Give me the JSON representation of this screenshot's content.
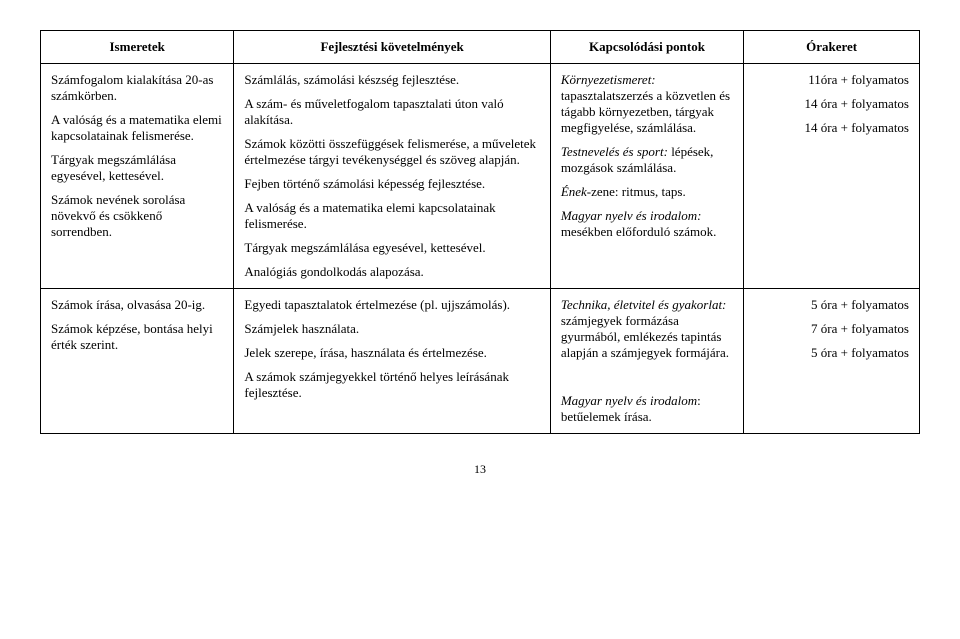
{
  "headers": {
    "c1": "Ismeretek",
    "c2": "Fejlesztési követelmények",
    "c3": "Kapcsolódási pontok",
    "c4": "Órakeret"
  },
  "row1": {
    "c1": {
      "p1": "Számfogalom kialakítása 20-as számkörben.",
      "p2": "A valóság és a matematika elemi kapcsolatainak felismerése.",
      "p3": "Tárgyak megszámlálása egyesével, kettesével.",
      "p4": "Számok nevének sorolása növekvő és csökkenő sorrendben."
    },
    "c2": {
      "p1": "Számlálás, számolási készség fejlesztése.",
      "p2": "A szám- és műveletfogalom tapasztalati úton való alakítása.",
      "p3": "Számok közötti összefüggések felismerése, a műveletek értelmezése tárgyi tevékenységgel és szöveg alapján.",
      "p4": "Fejben történő számolási képesség fejlesztése.",
      "p5": "A valóság és a matematika elemi kapcsolatainak felismerése.",
      "p6": "Tárgyak megszámlálása egyesével, kettesével.",
      "p7": "Analógiás gondolkodás alapozása."
    },
    "c3": {
      "l1": "Környezetismeret:",
      "t1": " tapasztalatszerzés a közvetlen és tágabb környezetben, tárgyak megfigyelése, számlálása.",
      "l2": "Testnevelés és sport:",
      "t2": " lépések, mozgások számlálása.",
      "l3": "Ének",
      "t3": "-zene: ritmus, taps.",
      "l4": "Magyar nyelv és irodalom:",
      "t4": " mesékben előforduló számok."
    },
    "c4": {
      "p1": "11óra + folyamatos",
      "p2": "14 óra + folyamatos",
      "p3": "14 óra + folyamatos"
    }
  },
  "row2": {
    "c1": {
      "p1": "Számok írása, olvasása 20-ig.",
      "p2": "Számok képzése, bontása helyi érték szerint."
    },
    "c2": {
      "p1": "Egyedi tapasztalatok értelmezése (pl. ujjszámolás).",
      "p2": "Számjelek használata.",
      "p3": "Jelek szerepe, írása, használata és értelmezése.",
      "p4": "A számok számjegyekkel történő helyes leírásának fejlesztése."
    },
    "c3": {
      "l1": "Technika, életvitel és gyakorlat:",
      "t1": " számjegyek formázása gyurmából, emlékezés tapintás alapján a számjegyek formájára.",
      "l2": "Magyar nyelv és irodalom",
      "t2": ": betűelemek írása."
    },
    "c4": {
      "p1": "5 óra + folyamatos",
      "p2": "7 óra + folyamatos",
      "p3": "5 óra + folyamatos"
    }
  },
  "pagenum": "13"
}
